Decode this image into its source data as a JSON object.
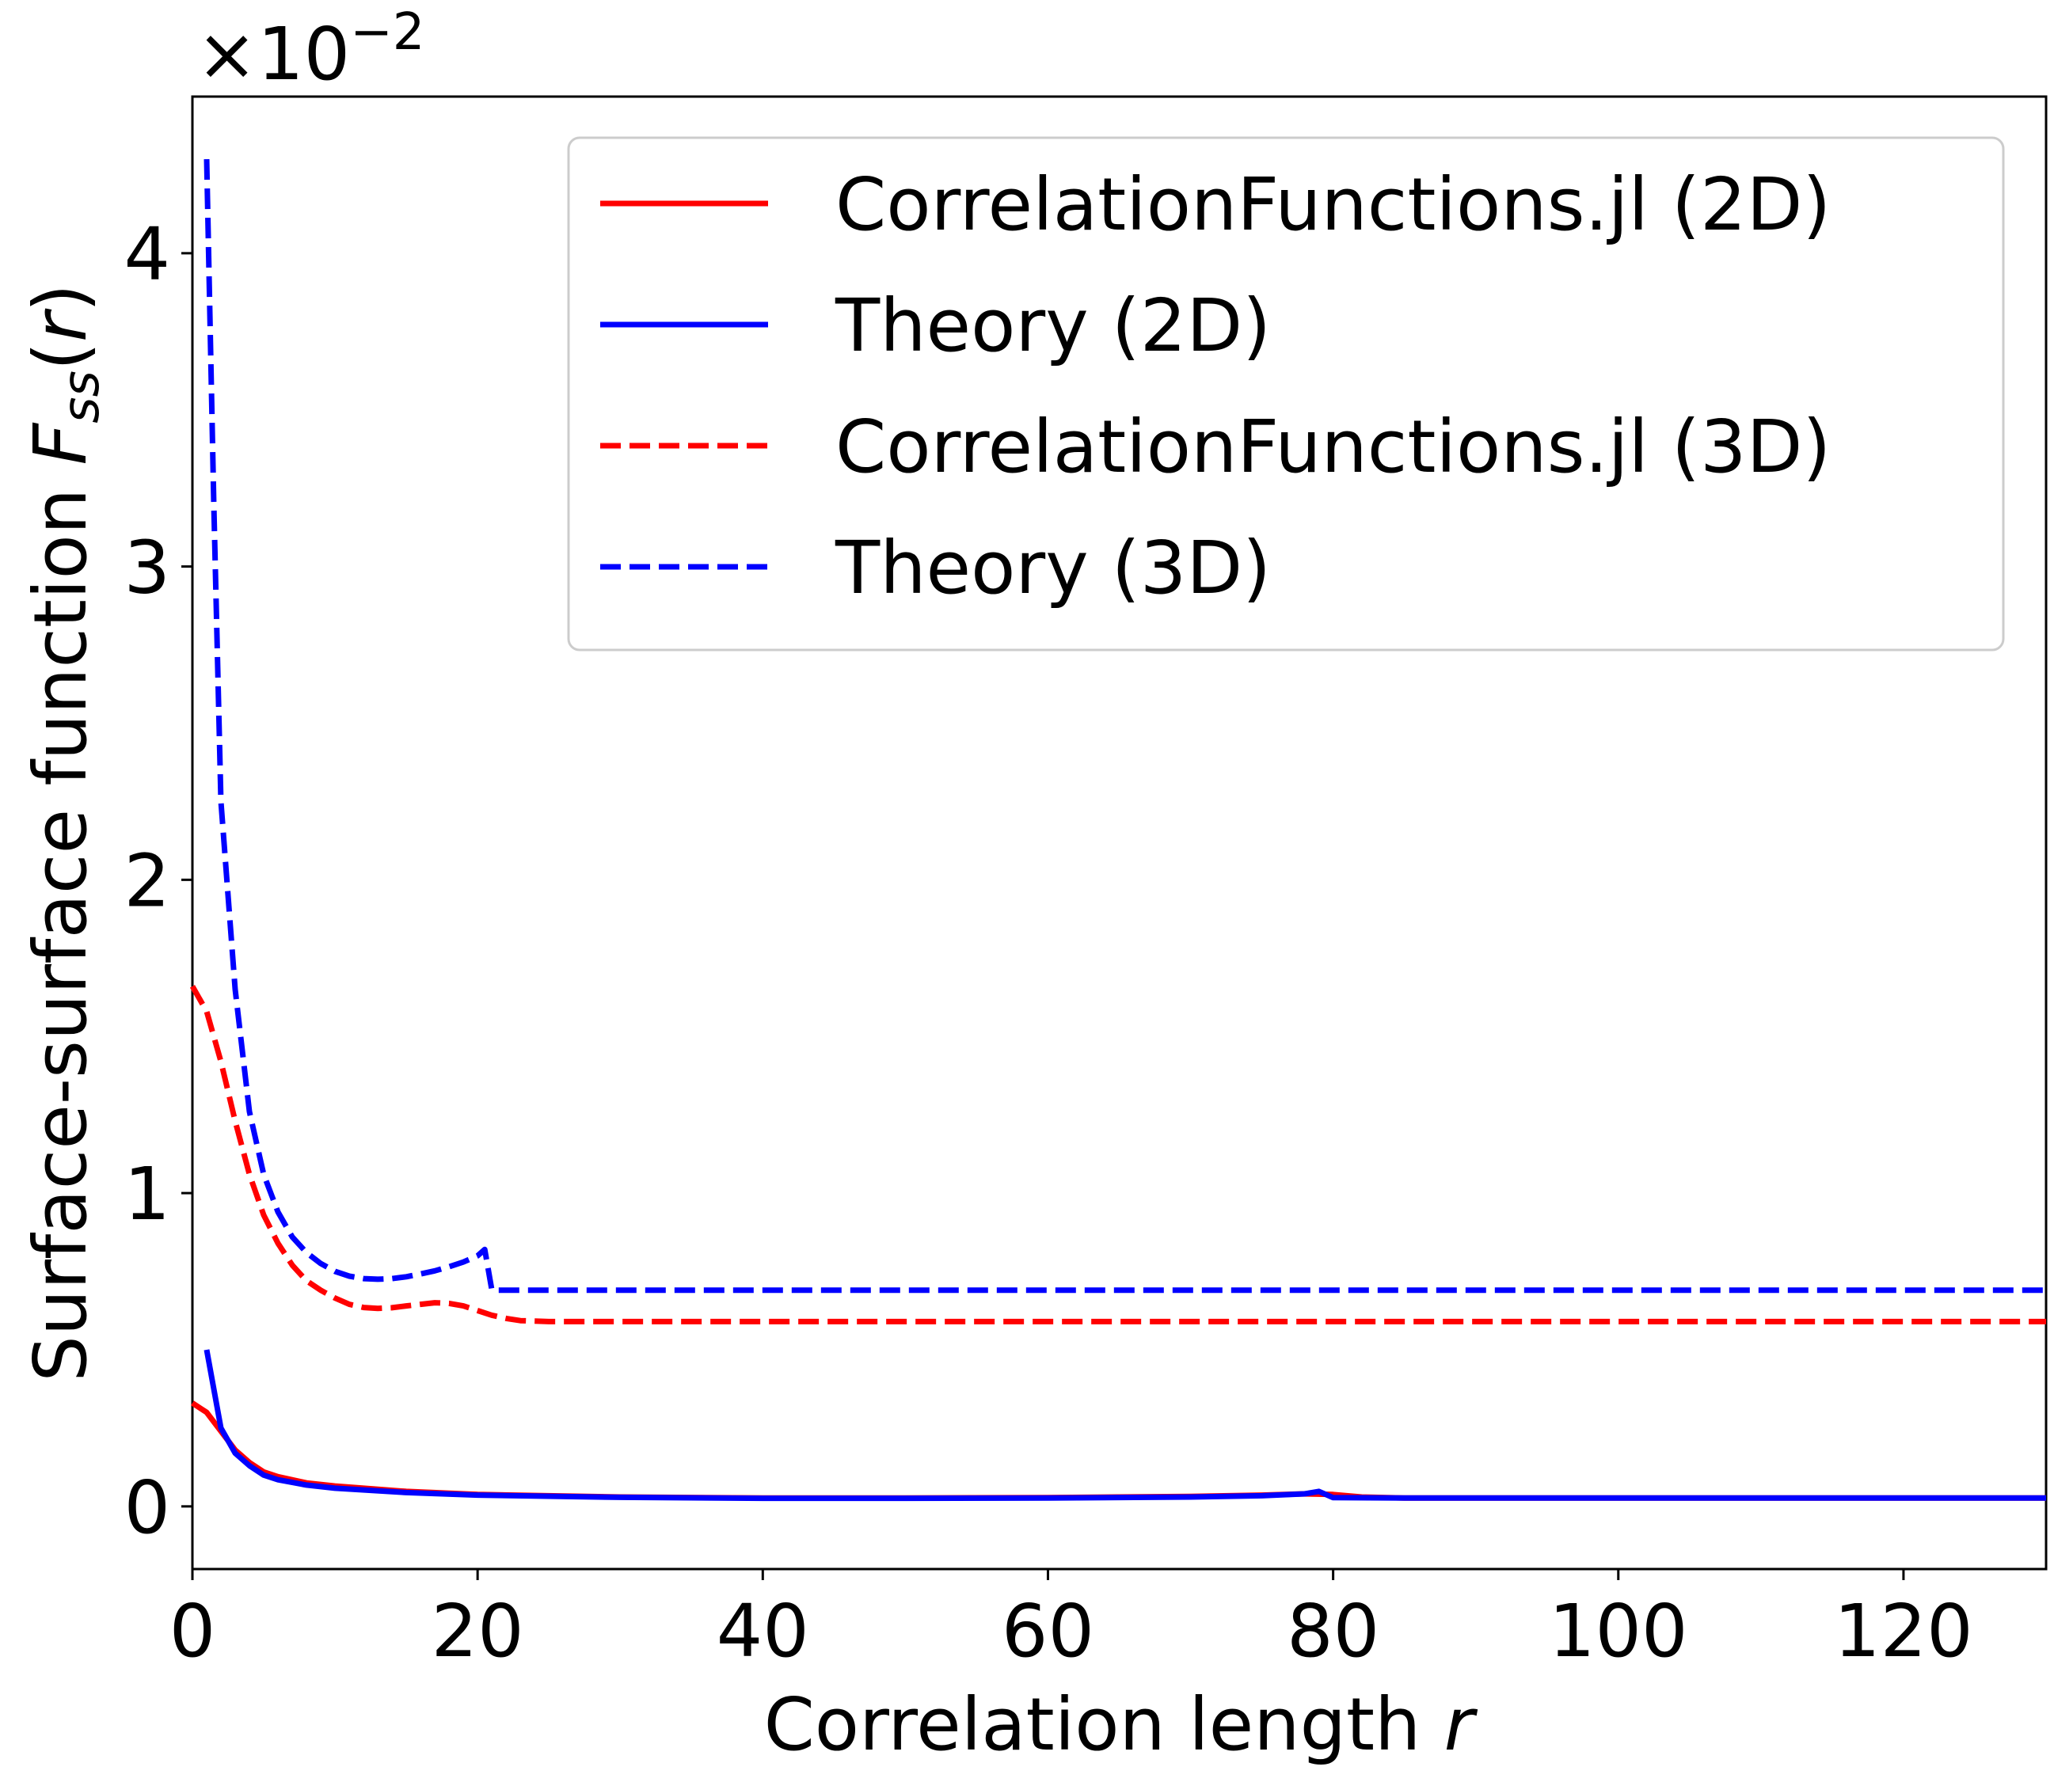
{
  "chart_data": {
    "type": "line",
    "xlabel": "Correlation length",
    "xlabel_var": "r",
    "ylabel": "Surface-surface function",
    "ylabel_var_main": "F",
    "ylabel_var_sub": "ss",
    "ylabel_var_arg": "r",
    "y_offset_text": "×10",
    "y_offset_exp": "−2",
    "xlim": [
      0,
      130
    ],
    "ylim": [
      -0.2,
      4.5
    ],
    "y_scale_note": "values shown in units of 1e-2",
    "xticks": [
      0,
      20,
      40,
      60,
      80,
      100,
      120
    ],
    "yticks": [
      0,
      1,
      2,
      3,
      4
    ],
    "grid": false,
    "legend_position": "top-right",
    "series": [
      {
        "name": "CorrelationFunctions.jl (2D)",
        "color": "#ff0000",
        "dash": "solid",
        "points": [
          [
            0,
            0.33
          ],
          [
            1,
            0.3
          ],
          [
            2,
            0.24
          ],
          [
            3,
            0.18
          ],
          [
            4,
            0.14
          ],
          [
            5,
            0.11
          ],
          [
            6,
            0.095
          ],
          [
            8,
            0.075
          ],
          [
            10,
            0.065
          ],
          [
            15,
            0.048
          ],
          [
            20,
            0.038
          ],
          [
            30,
            0.03
          ],
          [
            40,
            0.027
          ],
          [
            50,
            0.027
          ],
          [
            60,
            0.028
          ],
          [
            70,
            0.032
          ],
          [
            75,
            0.036
          ],
          [
            78,
            0.04
          ],
          [
            80,
            0.038
          ],
          [
            82,
            0.03
          ],
          [
            85,
            0.027
          ],
          [
            100,
            0.027
          ],
          [
            130,
            0.027
          ]
        ]
      },
      {
        "name": "Theory (2D)",
        "color": "#0000ff",
        "dash": "solid",
        "points": [
          [
            1,
            0.5
          ],
          [
            2,
            0.25
          ],
          [
            3,
            0.17
          ],
          [
            4,
            0.13
          ],
          [
            5,
            0.1
          ],
          [
            6,
            0.085
          ],
          [
            8,
            0.068
          ],
          [
            10,
            0.058
          ],
          [
            15,
            0.044
          ],
          [
            20,
            0.036
          ],
          [
            30,
            0.029
          ],
          [
            40,
            0.026
          ],
          [
            50,
            0.026
          ],
          [
            60,
            0.027
          ],
          [
            70,
            0.03
          ],
          [
            75,
            0.034
          ],
          [
            78,
            0.04
          ],
          [
            79,
            0.048
          ],
          [
            80,
            0.028
          ],
          [
            85,
            0.027
          ],
          [
            100,
            0.027
          ],
          [
            130,
            0.027
          ]
        ]
      },
      {
        "name": "CorrelationFunctions.jl (3D)",
        "color": "#ff0000",
        "dash": "dashed",
        "points": [
          [
            0,
            1.66
          ],
          [
            1,
            1.58
          ],
          [
            2,
            1.42
          ],
          [
            3,
            1.23
          ],
          [
            4,
            1.06
          ],
          [
            5,
            0.93
          ],
          [
            6,
            0.84
          ],
          [
            7,
            0.77
          ],
          [
            8,
            0.72
          ],
          [
            9,
            0.69
          ],
          [
            10,
            0.665
          ],
          [
            11,
            0.645
          ],
          [
            12,
            0.635
          ],
          [
            13,
            0.632
          ],
          [
            14,
            0.634
          ],
          [
            15,
            0.64
          ],
          [
            16,
            0.645
          ],
          [
            17,
            0.65
          ],
          [
            18,
            0.648
          ],
          [
            19,
            0.64
          ],
          [
            20,
            0.625
          ],
          [
            21,
            0.61
          ],
          [
            22,
            0.6
          ],
          [
            23,
            0.593
          ],
          [
            25,
            0.59
          ],
          [
            40,
            0.59
          ],
          [
            130,
            0.59
          ]
        ]
      },
      {
        "name": "Theory (3D)",
        "color": "#0000ff",
        "dash": "dashed",
        "points": [
          [
            1,
            4.3
          ],
          [
            1.5,
            3.2
          ],
          [
            2,
            2.25
          ],
          [
            3,
            1.65
          ],
          [
            4,
            1.26
          ],
          [
            5,
            1.06
          ],
          [
            6,
            0.94
          ],
          [
            7,
            0.86
          ],
          [
            8,
            0.81
          ],
          [
            9,
            0.775
          ],
          [
            10,
            0.75
          ],
          [
            11,
            0.735
          ],
          [
            12,
            0.727
          ],
          [
            13,
            0.725
          ],
          [
            14,
            0.727
          ],
          [
            15,
            0.733
          ],
          [
            16,
            0.742
          ],
          [
            17,
            0.752
          ],
          [
            18,
            0.765
          ],
          [
            19,
            0.78
          ],
          [
            20,
            0.8
          ],
          [
            20.5,
            0.82
          ],
          [
            21,
            0.69
          ],
          [
            22,
            0.69
          ],
          [
            30,
            0.69
          ],
          [
            130,
            0.69
          ]
        ]
      }
    ]
  }
}
